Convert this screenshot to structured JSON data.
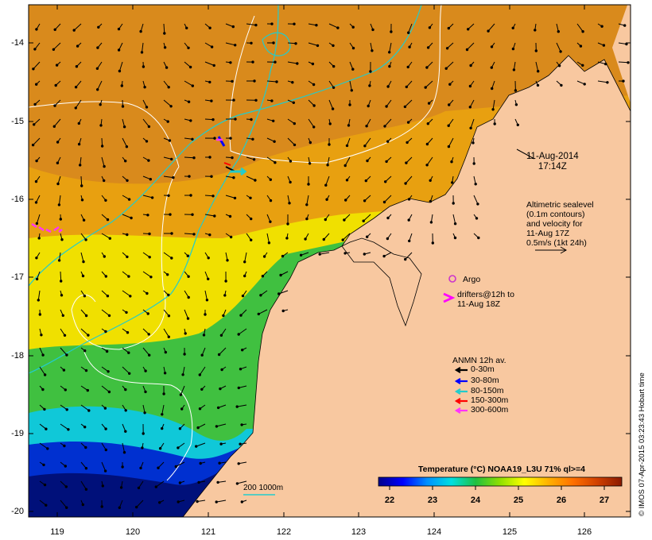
{
  "map": {
    "y_ticks": [
      "-14",
      "-15",
      "-16",
      "-17",
      "-18",
      "-19",
      "-20"
    ],
    "x_ticks": [
      "119",
      "120",
      "121",
      "122",
      "123",
      "124",
      "125",
      "126"
    ],
    "date_lines": [
      "11-Aug-2014",
      "17:14Z"
    ],
    "altimetry_lines": [
      "Altimetric sealevel",
      "(0.1m contours)",
      "and velocity for",
      "11-Aug 17Z",
      "0.5m/s (1kt 24h)"
    ],
    "argo_label": "Argo",
    "drifter_lines": [
      "drifters@12h to",
      "11-Aug 18Z"
    ],
    "anmn_title": "ANMN 12h av.",
    "anmn_legend": [
      {
        "label": "0-30m",
        "color": "#000000"
      },
      {
        "label": "30-80m",
        "color": "#0000ff"
      },
      {
        "label": "80-150m",
        "color": "#22cccc"
      },
      {
        "label": "150-300m",
        "color": "#ff0000"
      },
      {
        "label": "300-600m",
        "color": "#ff33ff"
      }
    ],
    "colorbar_title": "Temperature (°C) NOAA19_L3U 71% ql>=4",
    "colorbar_ticks": [
      "22",
      "23",
      "24",
      "25",
      "26",
      "27"
    ],
    "colorbar_colors": [
      "#00008b",
      "#0000ff",
      "#0090ff",
      "#00e0e0",
      "#20c040",
      "#90e000",
      "#ffff00",
      "#ffb000",
      "#ff7000",
      "#d04000",
      "#8b1a00"
    ],
    "contour_label": "200  1000m",
    "side_label": "© IMOS 07-Apr-2015 03:23:43 Hobart time",
    "colors": {
      "land": "#f8c8a0",
      "sea_warm": "#d98a1c",
      "sea_orange": "#e8a010",
      "sea_yellow": "#f0e000",
      "sea_green": "#40c040",
      "sea_cyan": "#10c8d8",
      "sea_blue": "#0030d0",
      "sea_navy": "#00107a",
      "argo": "#cc33cc",
      "drifter": "#ff00ff"
    }
  }
}
